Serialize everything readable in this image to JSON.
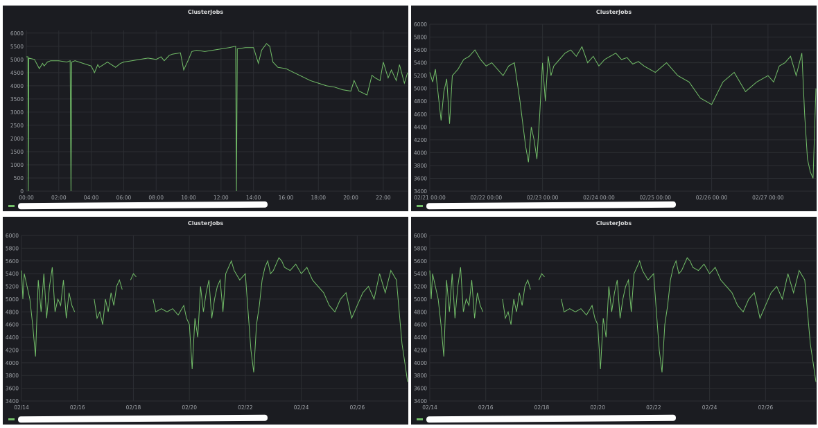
{
  "panels": [
    {
      "title": "ClusterJobs"
    },
    {
      "title": "ClusterJobs"
    },
    {
      "title": "ClusterJobs"
    },
    {
      "title": "ClusterJobs"
    }
  ],
  "series_color": "#73bf69",
  "chart_data": [
    {
      "type": "line",
      "title": "ClusterJobs",
      "xlabel": "",
      "ylabel": "",
      "x_ticks": [
        "00:00",
        "02:00",
        "04:00",
        "06:00",
        "08:00",
        "10:00",
        "12:00",
        "14:00",
        "16:00",
        "18:00",
        "20:00",
        "22:00"
      ],
      "y_ticks": [
        0,
        500,
        1000,
        1500,
        2000,
        2500,
        3000,
        3500,
        4000,
        4500,
        5000,
        5500,
        6000
      ],
      "xlim": [
        0,
        23.5
      ],
      "ylim": [
        0,
        6100
      ],
      "grid": true,
      "legend": "bottom-left",
      "series": [
        {
          "x": [
            0,
            0.1,
            0.12,
            0.15,
            0.5,
            0.8,
            1.0,
            1.1,
            1.3,
            1.5,
            2.0,
            2.5,
            2.7,
            2.75,
            2.8,
            3.0,
            3.5,
            4.0,
            4.2,
            4.4,
            4.5,
            5.0,
            5.5,
            5.8,
            6.0,
            6.5,
            7.0,
            7.5,
            8.0,
            8.3,
            8.5,
            8.8,
            9.0,
            9.5,
            9.7,
            10.0,
            10.2,
            10.5,
            11.0,
            11.5,
            12.0,
            12.5,
            12.9,
            12.95,
            13.0,
            13.5,
            14.0,
            14.3,
            14.5,
            14.8,
            15.0,
            15.2,
            15.5,
            16.0,
            16.5,
            17.0,
            17.5,
            18.0,
            18.5,
            19.0,
            19.5,
            20.0,
            20.2,
            20.5,
            21.0,
            21.3,
            21.5,
            21.8,
            22.0,
            22.3,
            22.5,
            22.8,
            23.0,
            23.3,
            23.5
          ],
          "y": [
            5100,
            5100,
            0,
            5050,
            5000,
            4650,
            4850,
            4750,
            4900,
            4950,
            4950,
            4900,
            4950,
            0,
            4900,
            4950,
            4850,
            4750,
            4500,
            4800,
            4700,
            4900,
            4700,
            4850,
            4900,
            4950,
            5000,
            5050,
            5000,
            5100,
            4950,
            5150,
            5200,
            5250,
            4600,
            5000,
            5300,
            5350,
            5300,
            5350,
            5400,
            5450,
            5500,
            0,
            5400,
            5450,
            5450,
            4850,
            5350,
            5600,
            5500,
            4900,
            4700,
            4650,
            4500,
            4350,
            4200,
            4100,
            4000,
            3950,
            3850,
            3800,
            4200,
            3800,
            3650,
            4400,
            4300,
            4200,
            4900,
            4300,
            4600,
            4200,
            4800,
            4100,
            4500
          ]
        }
      ]
    },
    {
      "type": "line",
      "title": "ClusterJobs",
      "xlabel": "",
      "ylabel": "",
      "x_ticks": [
        "02/21 00:00",
        "02/22 00:00",
        "02/23 00:00",
        "02/24 00:00",
        "02/25 00:00",
        "02/26 00:00",
        "02/27 00:00"
      ],
      "y_ticks": [
        3400,
        3600,
        3800,
        4000,
        4200,
        4400,
        4600,
        4800,
        5000,
        5200,
        5400,
        5600,
        5800,
        6000
      ],
      "xlim": [
        0,
        6.85
      ],
      "ylim": [
        3400,
        6000
      ],
      "grid": true,
      "legend": "bottom-left",
      "series": [
        {
          "x": [
            0,
            0.05,
            0.1,
            0.15,
            0.2,
            0.25,
            0.3,
            0.35,
            0.4,
            0.5,
            0.6,
            0.7,
            0.8,
            0.9,
            1.0,
            1.1,
            1.2,
            1.3,
            1.4,
            1.5,
            1.6,
            1.7,
            1.75,
            1.8,
            1.85,
            1.9,
            1.95,
            2.0,
            2.05,
            2.1,
            2.15,
            2.2,
            2.3,
            2.4,
            2.5,
            2.6,
            2.7,
            2.8,
            2.9,
            3.0,
            3.1,
            3.2,
            3.3,
            3.4,
            3.5,
            3.6,
            3.7,
            3.8,
            3.9,
            4.0,
            4.2,
            4.4,
            4.6,
            4.8,
            5.0,
            5.2,
            5.4,
            5.6,
            5.8,
            6.0,
            6.1,
            6.2,
            6.3,
            6.4,
            6.5,
            6.6,
            6.65,
            6.7,
            6.75,
            6.8,
            6.85
          ],
          "y": [
            5250,
            5100,
            5300,
            4900,
            4500,
            4950,
            5150,
            4450,
            5200,
            5300,
            5450,
            5500,
            5600,
            5450,
            5350,
            5400,
            5300,
            5200,
            5350,
            5400,
            4800,
            4100,
            3850,
            4400,
            4200,
            3900,
            4600,
            5400,
            4800,
            5500,
            5200,
            5350,
            5450,
            5550,
            5600,
            5500,
            5650,
            5400,
            5500,
            5350,
            5450,
            5500,
            5550,
            5450,
            5480,
            5380,
            5420,
            5350,
            5300,
            5250,
            5400,
            5200,
            5100,
            4850,
            4750,
            5100,
            5250,
            4950,
            5100,
            5200,
            5100,
            5350,
            5400,
            5500,
            5200,
            5550,
            4600,
            3900,
            3700,
            3600,
            5000
          ]
        }
      ]
    },
    {
      "type": "line",
      "title": "ClusterJobs",
      "xlabel": "",
      "ylabel": "",
      "x_ticks": [
        "02/14",
        "02/16",
        "02/18",
        "02/20",
        "02/22",
        "02/24",
        "02/26"
      ],
      "y_ticks": [
        3400,
        3600,
        3800,
        4000,
        4200,
        4400,
        4600,
        4800,
        5000,
        5200,
        5400,
        5600,
        5800,
        6000
      ],
      "xlim": [
        14,
        27.8
      ],
      "ylim": [
        3400,
        6000
      ],
      "grid": true,
      "legend": "bottom-left",
      "series": [
        {
          "x": [
            14.0,
            14.05,
            14.1,
            14.3,
            14.4,
            14.5,
            14.6,
            14.7,
            14.8,
            14.9,
            15.0,
            15.1,
            15.2,
            15.3,
            15.4,
            15.5,
            15.6,
            15.7,
            15.8,
            15.9,
            null,
            16.0,
            null,
            16.6,
            16.7,
            16.8,
            16.9,
            17.0,
            17.1,
            17.2,
            17.3,
            17.4,
            17.5,
            17.6,
            null,
            17.9,
            18.0,
            18.1,
            null,
            18.4,
            null,
            18.7,
            18.8,
            19.0,
            19.2,
            19.4,
            19.6,
            19.8,
            19.9,
            20.0,
            20.1,
            20.2,
            20.3,
            20.4,
            20.5,
            20.6,
            20.7,
            20.8,
            20.9,
            21.0,
            21.1,
            21.2,
            21.3,
            21.4,
            21.5,
            21.6,
            21.8,
            22.0,
            22.1,
            22.2,
            22.3,
            22.4,
            22.5,
            22.6,
            22.7,
            22.8,
            22.9,
            23.0,
            23.1,
            23.2,
            23.3,
            23.4,
            23.6,
            23.8,
            24.0,
            24.2,
            24.4,
            24.6,
            24.8,
            25.0,
            25.2,
            25.4,
            25.6,
            25.8,
            26.0,
            26.2,
            26.4,
            26.6,
            26.8,
            27.0,
            27.2,
            27.4,
            27.5,
            27.6,
            27.7,
            27.8
          ],
          "y": [
            5450,
            5000,
            5400,
            5000,
            4600,
            4100,
            5300,
            4800,
            5400,
            4700,
            5200,
            5500,
            4800,
            5000,
            4900,
            5300,
            4700,
            5100,
            4900,
            4800,
            null,
            5200,
            null,
            5000,
            4700,
            4800,
            4600,
            5000,
            4800,
            5100,
            4900,
            5200,
            5300,
            5150,
            null,
            5300,
            5400,
            5350,
            null,
            5300,
            null,
            5000,
            4800,
            4850,
            4800,
            4850,
            4750,
            4900,
            4700,
            4600,
            3900,
            4700,
            4400,
            5200,
            4800,
            5100,
            5300,
            4700,
            5000,
            5200,
            5300,
            4800,
            5400,
            5500,
            5600,
            5450,
            5300,
            5400,
            4800,
            4200,
            3850,
            4600,
            4900,
            5300,
            5500,
            5600,
            5400,
            5450,
            5550,
            5650,
            5600,
            5500,
            5450,
            5550,
            5400,
            5500,
            5300,
            5200,
            5100,
            4900,
            4800,
            5000,
            5100,
            4700,
            4900,
            5100,
            5200,
            5000,
            5400,
            5100,
            5450,
            5300,
            4800,
            4300,
            4000,
            3700
          ]
        }
      ]
    },
    {
      "type": "line",
      "title": "ClusterJobs",
      "xlabel": "",
      "ylabel": "",
      "x_ticks": [
        "02/14",
        "02/16",
        "02/18",
        "02/20",
        "02/22",
        "02/24",
        "02/26"
      ],
      "y_ticks": [
        3400,
        3600,
        3800,
        4000,
        4200,
        4400,
        4600,
        4800,
        5000,
        5200,
        5400,
        5600,
        5800,
        6000
      ],
      "xlim": [
        14,
        27.8
      ],
      "ylim": [
        3400,
        6000
      ],
      "grid": true,
      "legend": "bottom-left",
      "series": [
        {
          "x": [
            14.0,
            14.05,
            14.1,
            14.3,
            14.4,
            14.5,
            14.6,
            14.7,
            14.8,
            14.9,
            15.0,
            15.1,
            15.2,
            15.3,
            15.4,
            15.5,
            15.6,
            15.7,
            15.8,
            15.9,
            null,
            16.0,
            null,
            16.6,
            16.7,
            16.8,
            16.9,
            17.0,
            17.1,
            17.2,
            17.3,
            17.4,
            17.5,
            17.6,
            null,
            17.9,
            18.0,
            18.1,
            null,
            18.4,
            null,
            18.7,
            18.8,
            19.0,
            19.2,
            19.4,
            19.6,
            19.8,
            19.9,
            20.0,
            20.1,
            20.2,
            20.3,
            20.4,
            20.5,
            20.6,
            20.7,
            20.8,
            20.9,
            21.0,
            21.1,
            21.2,
            21.3,
            21.4,
            21.5,
            21.6,
            21.8,
            22.0,
            22.1,
            22.2,
            22.3,
            22.4,
            22.5,
            22.6,
            22.7,
            22.8,
            22.9,
            23.0,
            23.1,
            23.2,
            23.3,
            23.4,
            23.6,
            23.8,
            24.0,
            24.2,
            24.4,
            24.6,
            24.8,
            25.0,
            25.2,
            25.4,
            25.6,
            25.8,
            26.0,
            26.2,
            26.4,
            26.6,
            26.8,
            27.0,
            27.2,
            27.4,
            27.5,
            27.6,
            27.7,
            27.8
          ],
          "y": [
            5450,
            5000,
            5400,
            5000,
            4600,
            4100,
            5300,
            4800,
            5400,
            4700,
            5200,
            5500,
            4800,
            5000,
            4900,
            5300,
            4700,
            5100,
            4900,
            4800,
            null,
            5200,
            null,
            5000,
            4700,
            4800,
            4600,
            5000,
            4800,
            5100,
            4900,
            5200,
            5300,
            5150,
            null,
            5300,
            5400,
            5350,
            null,
            5300,
            null,
            5000,
            4800,
            4850,
            4800,
            4850,
            4750,
            4900,
            4700,
            4600,
            3900,
            4700,
            4400,
            5200,
            4800,
            5100,
            5300,
            4700,
            5000,
            5200,
            5300,
            4800,
            5400,
            5500,
            5600,
            5450,
            5300,
            5400,
            4800,
            4200,
            3850,
            4600,
            4900,
            5300,
            5500,
            5600,
            5400,
            5450,
            5550,
            5650,
            5600,
            5500,
            5450,
            5550,
            5400,
            5500,
            5300,
            5200,
            5100,
            4900,
            4800,
            5000,
            5100,
            4700,
            4900,
            5100,
            5200,
            5000,
            5400,
            5100,
            5450,
            5300,
            4800,
            4300,
            4000,
            3700
          ]
        }
      ]
    }
  ]
}
